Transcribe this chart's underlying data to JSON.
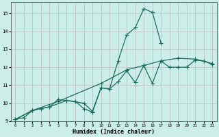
{
  "xlabel": "Humidex (Indice chaleur)",
  "background_color": "#cceee8",
  "grid_color": "#bbbbbb",
  "line_color": "#1a6b5e",
  "xlim": [
    -0.5,
    23.5
  ],
  "ylim": [
    9.0,
    15.6
  ],
  "yticks": [
    9,
    10,
    11,
    12,
    13,
    14,
    15
  ],
  "xticks": [
    0,
    1,
    2,
    3,
    4,
    5,
    6,
    7,
    8,
    9,
    10,
    11,
    12,
    13,
    14,
    15,
    16,
    17,
    18,
    19,
    20,
    21,
    22,
    23
  ],
  "series1_x": [
    0,
    1,
    2,
    3,
    4,
    5,
    6,
    7,
    8,
    9,
    10,
    11,
    12,
    13,
    14,
    15,
    16,
    17
  ],
  "series1_y": [
    9.1,
    9.2,
    9.6,
    9.7,
    9.8,
    10.2,
    10.15,
    10.1,
    9.7,
    9.5,
    10.85,
    10.8,
    12.35,
    13.8,
    14.2,
    15.25,
    15.05,
    13.35
  ],
  "series2_x": [
    0,
    2,
    5,
    10,
    13,
    15,
    17,
    19,
    21,
    23
  ],
  "series2_y": [
    9.1,
    9.6,
    10.1,
    11.1,
    11.85,
    12.1,
    12.35,
    12.5,
    12.45,
    12.2
  ],
  "series3_x": [
    0,
    2,
    4,
    6,
    8,
    9,
    10,
    11,
    12,
    13,
    14,
    15,
    16,
    17,
    18,
    19,
    20,
    21,
    22,
    23
  ],
  "series3_y": [
    9.1,
    9.6,
    9.8,
    10.15,
    10.0,
    9.55,
    10.85,
    10.8,
    11.2,
    11.8,
    11.15,
    12.1,
    11.1,
    12.35,
    12.0,
    12.0,
    12.0,
    12.4,
    12.35,
    12.15
  ],
  "marker": "+",
  "marker_size": 4,
  "linewidth": 0.9
}
